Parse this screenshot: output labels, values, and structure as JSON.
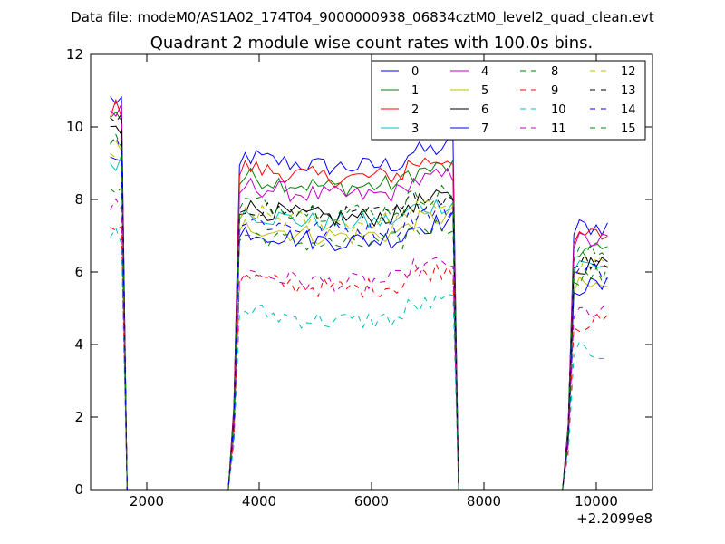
{
  "figure": {
    "suptitle": "Data file: modeM0/AS1A02_174T04_9000000938_06834cztM0_level2_quad_clean.evt"
  },
  "chart_data": {
    "type": "line",
    "title": "Quadrant 2 module wise count rates with 100.0s bins.",
    "xlabel": "",
    "ylabel": "",
    "xlim": [
      1000,
      11000
    ],
    "ylim": [
      0,
      12
    ],
    "x_offset_label": "+2.2099e8",
    "x_ticks": [
      2000,
      4000,
      6000,
      8000,
      10000
    ],
    "x_tick_labels": [
      "2000",
      "4000",
      "6000",
      "8000",
      "10000"
    ],
    "y_ticks": [
      0,
      2,
      4,
      6,
      8,
      10,
      12
    ],
    "y_tick_labels": [
      "0",
      "2",
      "4",
      "6",
      "8",
      "10",
      "12"
    ],
    "grid": false,
    "legend_placement": "top-right",
    "legend_columns": 4,
    "segments": [
      {
        "x_start": 1350,
        "x_step": 100,
        "count": 3,
        "left_drop": false,
        "right_drop": true
      },
      {
        "x_start": 3550,
        "x_step": 100,
        "count": 40,
        "left_drop": true,
        "right_drop": true
      },
      {
        "x_start": 9500,
        "x_step": 100,
        "count": 8,
        "left_drop": true,
        "right_drop": false
      }
    ],
    "series": [
      {
        "name": "0",
        "color": "#0000ff",
        "dash": "solid",
        "levels": [
          10.75,
          9.25,
          7.25
        ]
      },
      {
        "name": "1",
        "color": "#008000",
        "dash": "solid",
        "levels": [
          10.3,
          8.7,
          6.6
        ]
      },
      {
        "name": "2",
        "color": "#ff0000",
        "dash": "solid",
        "levels": [
          10.5,
          8.95,
          7.0
        ]
      },
      {
        "name": "3",
        "color": "#00bfbf",
        "dash": "solid",
        "levels": [
          9.0,
          7.7,
          6.2
        ]
      },
      {
        "name": "4",
        "color": "#bf00bf",
        "dash": "solid",
        "levels": [
          10.4,
          8.45,
          6.85
        ]
      },
      {
        "name": "5",
        "color": "#bfbf00",
        "dash": "solid",
        "levels": [
          9.5,
          7.35,
          5.6
        ]
      },
      {
        "name": "6",
        "color": "#000000",
        "dash": "solid",
        "levels": [
          9.9,
          7.85,
          6.2
        ]
      },
      {
        "name": "7",
        "color": "#0000ff",
        "dash": "solid",
        "levels": [
          9.3,
          7.2,
          5.6
        ]
      },
      {
        "name": "8",
        "color": "#008000",
        "dash": "dashed",
        "levels": [
          8.4,
          7.1,
          5.9
        ]
      },
      {
        "name": "9",
        "color": "#ff0000",
        "dash": "dashed",
        "levels": [
          7.3,
          5.9,
          4.6
        ]
      },
      {
        "name": "10",
        "color": "#00bfbf",
        "dash": "dashed",
        "levels": [
          7.0,
          5.0,
          3.8
        ]
      },
      {
        "name": "11",
        "color": "#bf00bf",
        "dash": "dashed",
        "levels": [
          7.8,
          6.05,
          4.9
        ]
      },
      {
        "name": "12",
        "color": "#bfbf00",
        "dash": "dashed",
        "levels": [
          9.2,
          7.7,
          6.2
        ]
      },
      {
        "name": "13",
        "color": "#000000",
        "dash": "dashed",
        "levels": [
          10.1,
          7.9,
          6.3
        ]
      },
      {
        "name": "14",
        "color": "#0000ff",
        "dash": "dashed",
        "levels": [
          9.6,
          7.5,
          6.05
        ]
      },
      {
        "name": "15",
        "color": "#008000",
        "dash": "dashed",
        "levels": [
          9.6,
          8.0,
          6.5
        ]
      }
    ]
  }
}
